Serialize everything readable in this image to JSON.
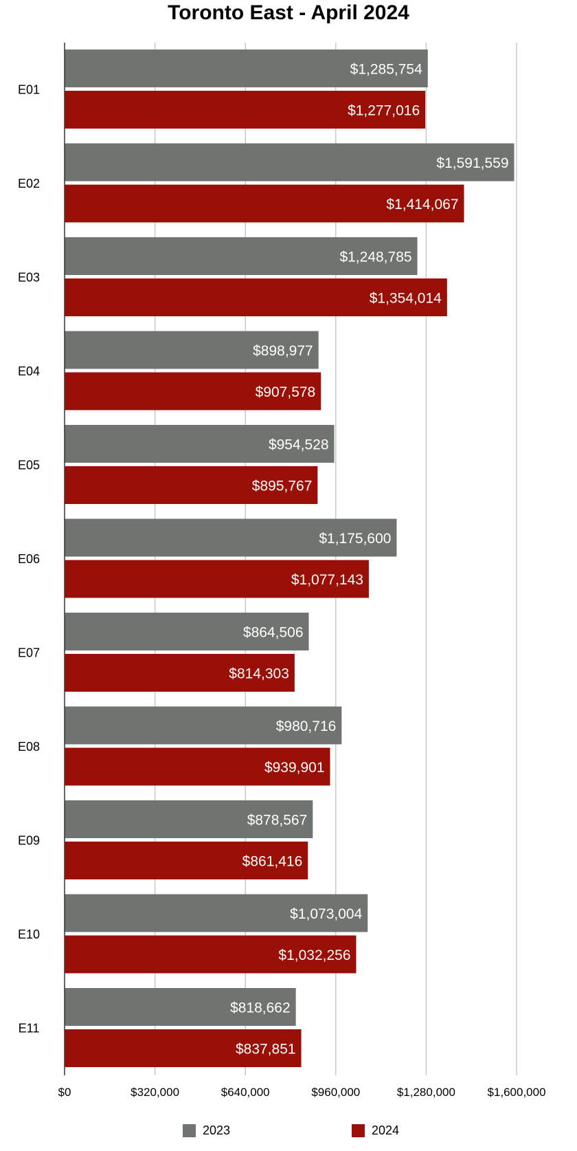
{
  "chart_data": {
    "type": "bar",
    "orientation": "horizontal",
    "title": "Toronto East - April 2024",
    "categories": [
      "E01",
      "E02",
      "E03",
      "E04",
      "E05",
      "E06",
      "E07",
      "E08",
      "E09",
      "E10",
      "E11"
    ],
    "series": [
      {
        "name": "2023",
        "color": "#6f7470",
        "values": [
          1285754,
          1591559,
          1248785,
          898977,
          954528,
          1175600,
          864506,
          980716,
          878567,
          1073004,
          818662
        ],
        "labels": [
          "$1,285,754",
          "$1,591,559",
          "$1,248,785",
          "$898,977",
          "$954,528",
          "$1,175,600",
          "$864,506",
          "$980,716",
          "$878,567",
          "$1,073,004",
          "$818,662"
        ]
      },
      {
        "name": "2024",
        "color": "#9a1006",
        "values": [
          1277016,
          1414067,
          1354014,
          907578,
          895767,
          1077143,
          814303,
          939901,
          861416,
          1032256,
          837851
        ],
        "labels": [
          "$1,277,016",
          "$1,414,067",
          "$1,354,014",
          "$907,578",
          "$895,767",
          "$1,077,143",
          "$814,303",
          "$939,901",
          "$861,416",
          "$1,032,256",
          "$837,851"
        ]
      }
    ],
    "xlim": [
      0,
      1600000
    ],
    "xticks": [
      0,
      320000,
      640000,
      960000,
      1280000,
      1600000
    ],
    "xtick_labels": [
      "$0",
      "$320,000",
      "$640,000",
      "$960,000",
      "$1,280,000",
      "$1,600,000"
    ],
    "grid": true,
    "legend": "bottom"
  }
}
